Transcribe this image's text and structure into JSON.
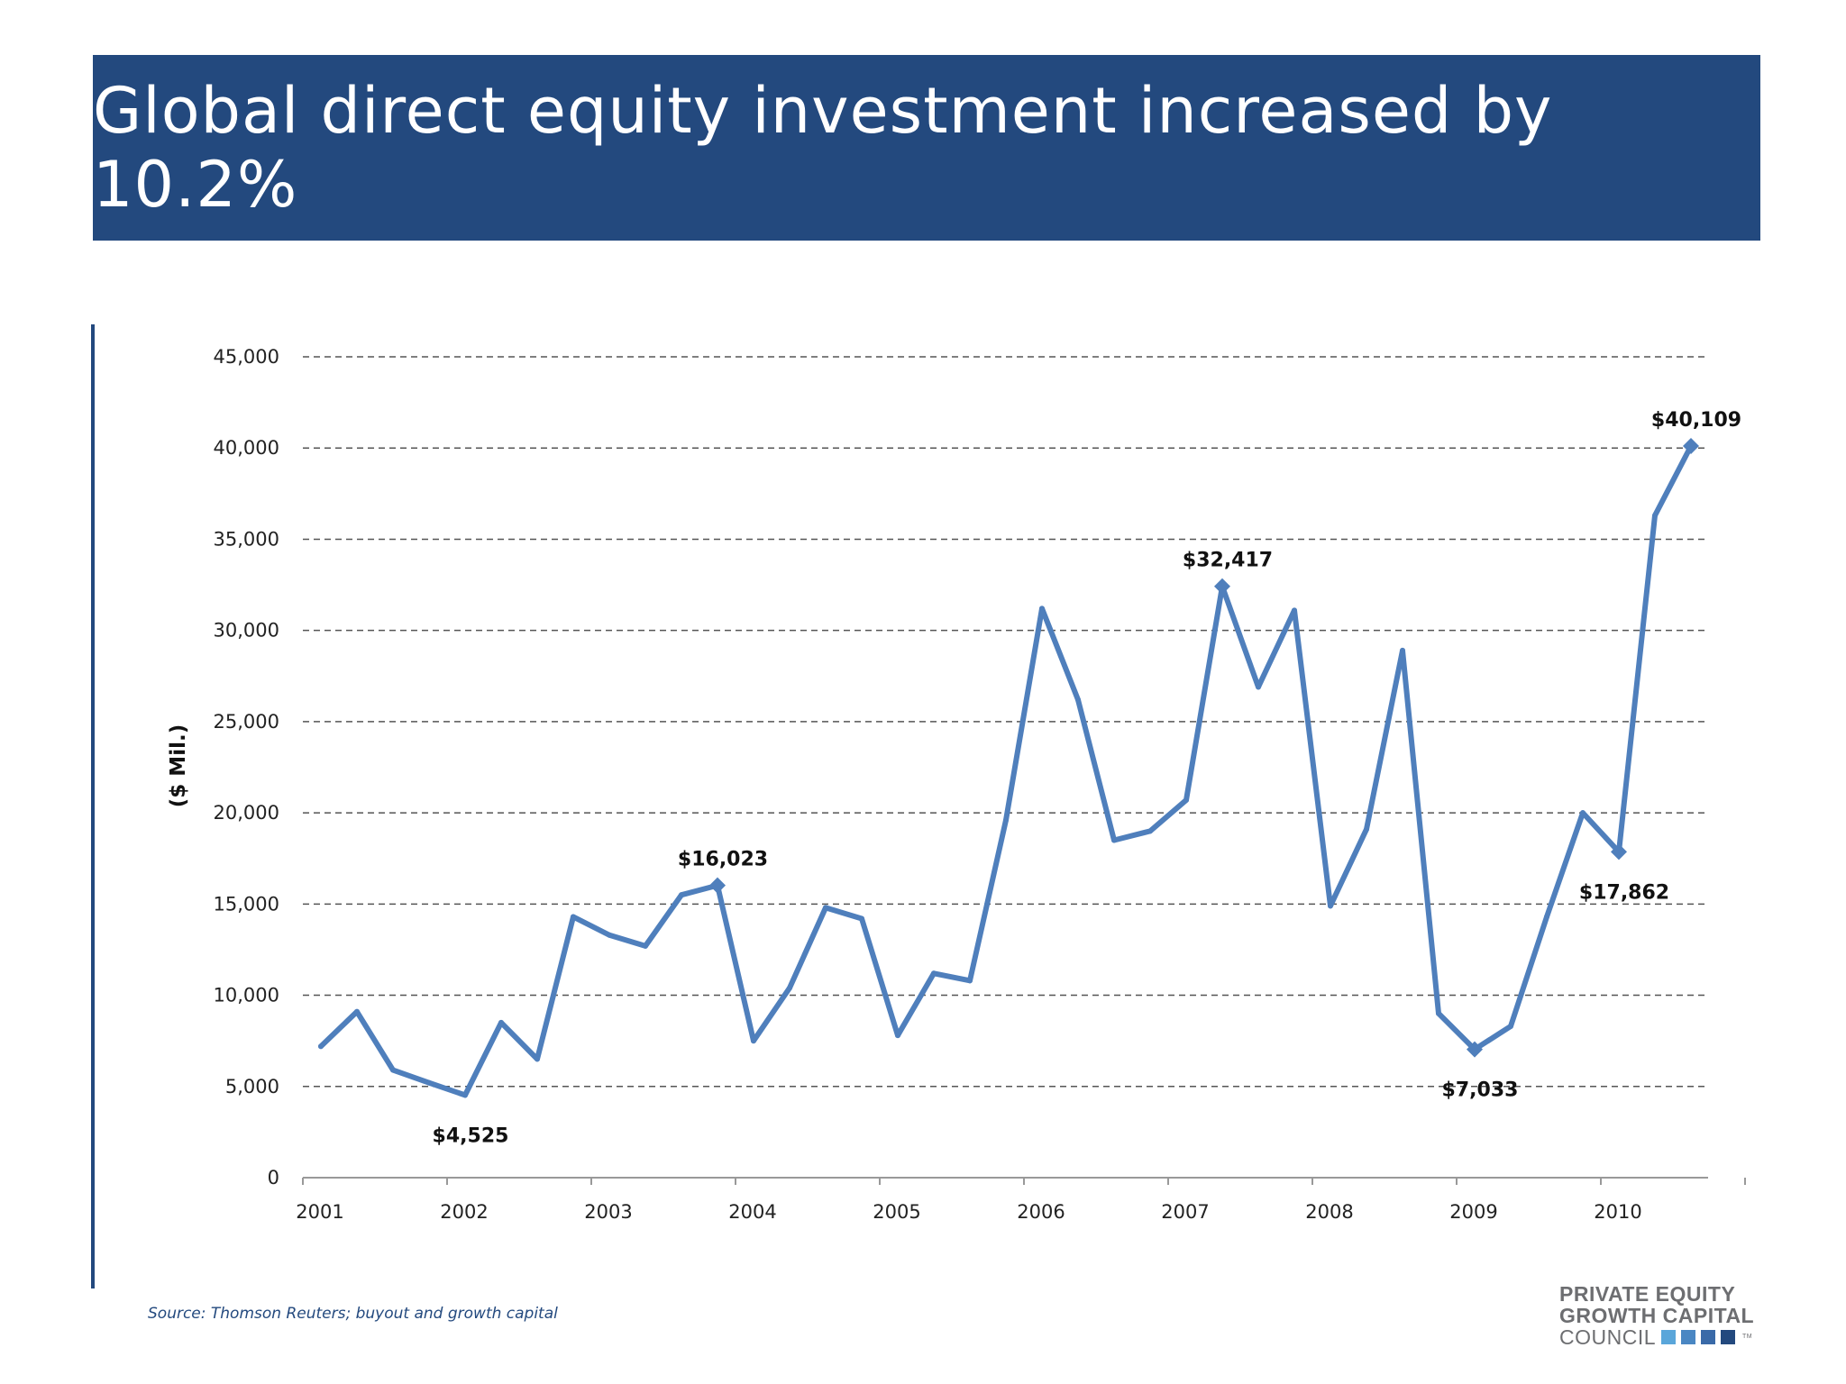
{
  "slide": {
    "title": "Global direct equity investment increased by 10.2%",
    "source": "Source: Thomson Reuters; buyout and growth capital",
    "colors": {
      "band": "#23497e",
      "line": "#4f7fbc"
    },
    "logo": {
      "line1": "PRIVATE EQUITY",
      "line2": "GROWTH CAPITAL",
      "line3": "COUNCIL",
      "trademark": "TM",
      "square_colors": [
        "#5aa6da",
        "#4a87c3",
        "#3a6aa8",
        "#23497e"
      ]
    }
  },
  "chart_data": {
    "type": "line",
    "ylabel": "($ Mil.)",
    "xlabel": "",
    "ylim": [
      0,
      45000
    ],
    "yticks": [
      0,
      5000,
      10000,
      15000,
      20000,
      25000,
      30000,
      35000,
      40000,
      45000
    ],
    "ytick_labels": [
      "0",
      "5,000",
      "10,000",
      "15,000",
      "20,000",
      "25,000",
      "30,000",
      "35,000",
      "40,000",
      "45,000"
    ],
    "xticks": [
      "2001",
      "2002",
      "2003",
      "2004",
      "2005",
      "2006",
      "2007",
      "2008",
      "2009",
      "2010"
    ],
    "grid": "horizontal-dashed",
    "series": [
      {
        "values": [
          7200,
          9100,
          5900,
          5200,
          4525,
          8500,
          6500,
          14300,
          13300,
          12700,
          15500,
          16023,
          7500,
          10400,
          14800,
          14200,
          7800,
          11200,
          10800,
          19600,
          31200,
          26200,
          18500,
          19000,
          20700,
          32417,
          26900,
          31100,
          14900,
          19100,
          28900,
          9000,
          7033,
          8300,
          14300,
          20000,
          17862,
          36300,
          40109
        ]
      }
    ],
    "annotations": [
      {
        "index": 4,
        "label": "$4,525",
        "marker": false,
        "pos": "below"
      },
      {
        "index": 11,
        "label": "$16,023",
        "marker": true,
        "pos": "above"
      },
      {
        "index": 25,
        "label": "$32,417",
        "marker": true,
        "pos": "above"
      },
      {
        "index": 32,
        "label": "$7,033",
        "marker": true,
        "pos": "below"
      },
      {
        "index": 36,
        "label": "$17,862",
        "marker": true,
        "pos": "below"
      },
      {
        "index": 38,
        "label": "$40,109",
        "marker": true,
        "pos": "above"
      }
    ]
  }
}
